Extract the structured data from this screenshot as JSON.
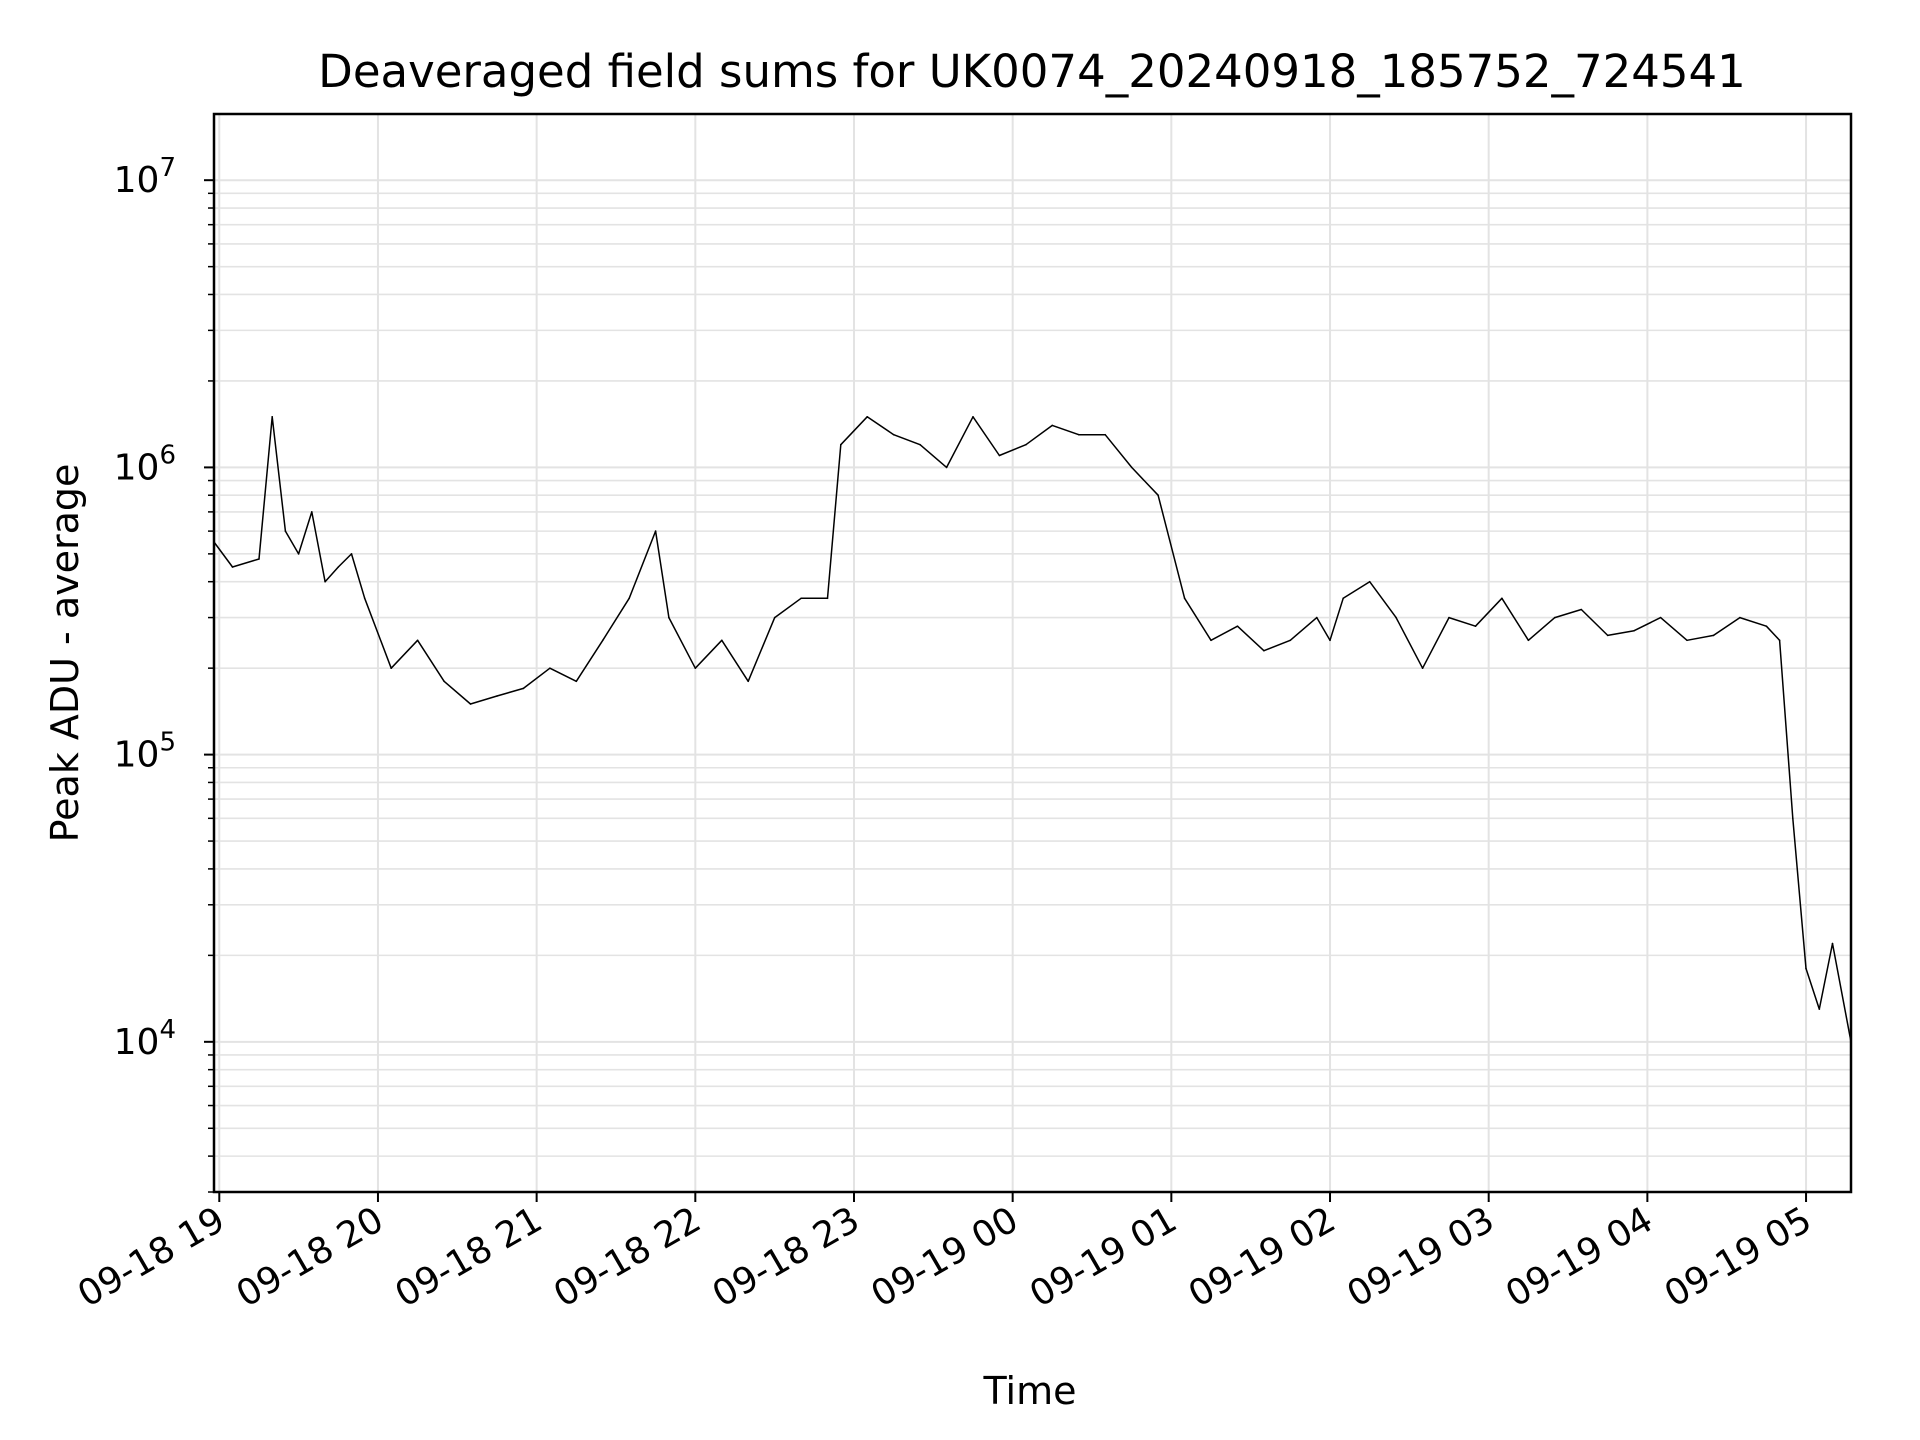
{
  "chart_data": {
    "type": "line",
    "title": "Deaveraged field sums for UK0074_20240918_185752_724541",
    "xlabel": "Time",
    "ylabel": "Peak ADU - average",
    "yscale": "log",
    "grid": true,
    "x_ticks": [
      "09-18 19",
      "09-18 20",
      "09-18 21",
      "09-18 22",
      "09-18 23",
      "09-19 00",
      "09-19 01",
      "09-19 02",
      "09-19 03",
      "09-19 04",
      "09-19 05"
    ],
    "y_ticks": [
      {
        "base": "10",
        "exp": "4"
      },
      {
        "base": "10",
        "exp": "5"
      },
      {
        "base": "10",
        "exp": "6"
      },
      {
        "base": "10",
        "exp": "7"
      }
    ],
    "xlim": [
      "2024-09-18 18:58",
      "2024-09-19 05:17"
    ],
    "ylim": [
      3000,
      17000000
    ],
    "line_color": "#000000",
    "grid_color": "#e3e3e3",
    "series": [
      {
        "name": "",
        "x": [
          "2024-09-18 18:58",
          "2024-09-18 19:05",
          "2024-09-18 19:15",
          "2024-09-18 19:20",
          "2024-09-18 19:25",
          "2024-09-18 19:30",
          "2024-09-18 19:35",
          "2024-09-18 19:40",
          "2024-09-18 19:45",
          "2024-09-18 19:50",
          "2024-09-18 19:55",
          "2024-09-18 20:05",
          "2024-09-18 20:15",
          "2024-09-18 20:25",
          "2024-09-18 20:35",
          "2024-09-18 20:45",
          "2024-09-18 20:55",
          "2024-09-18 21:05",
          "2024-09-18 21:15",
          "2024-09-18 21:25",
          "2024-09-18 21:35",
          "2024-09-18 21:45",
          "2024-09-18 21:50",
          "2024-09-18 22:00",
          "2024-09-18 22:10",
          "2024-09-18 22:20",
          "2024-09-18 22:30",
          "2024-09-18 22:40",
          "2024-09-18 22:50",
          "2024-09-18 22:55",
          "2024-09-18 23:05",
          "2024-09-18 23:15",
          "2024-09-18 23:25",
          "2024-09-18 23:35",
          "2024-09-18 23:45",
          "2024-09-18 23:55",
          "2024-09-19 00:05",
          "2024-09-19 00:15",
          "2024-09-19 00:25",
          "2024-09-19 00:35",
          "2024-09-19 00:45",
          "2024-09-19 00:55",
          "2024-09-19 01:05",
          "2024-09-19 01:15",
          "2024-09-19 01:25",
          "2024-09-19 01:35",
          "2024-09-19 01:45",
          "2024-09-19 01:55",
          "2024-09-19 02:00",
          "2024-09-19 02:05",
          "2024-09-19 02:15",
          "2024-09-19 02:25",
          "2024-09-19 02:35",
          "2024-09-19 02:45",
          "2024-09-19 02:55",
          "2024-09-19 03:05",
          "2024-09-19 03:15",
          "2024-09-19 03:25",
          "2024-09-19 03:35",
          "2024-09-19 03:45",
          "2024-09-19 03:55",
          "2024-09-19 04:05",
          "2024-09-19 04:15",
          "2024-09-19 04:25",
          "2024-09-19 04:35",
          "2024-09-19 04:45",
          "2024-09-19 04:50",
          "2024-09-19 04:55",
          "2024-09-19 05:00",
          "2024-09-19 05:05",
          "2024-09-19 05:10",
          "2024-09-19 05:17"
        ],
        "y": [
          550000,
          450000,
          480000,
          1500000,
          600000,
          500000,
          700000,
          400000,
          450000,
          500000,
          350000,
          200000,
          250000,
          180000,
          150000,
          160000,
          170000,
          200000,
          180000,
          250000,
          350000,
          600000,
          300000,
          200000,
          250000,
          180000,
          300000,
          350000,
          350000,
          1200000,
          1500000,
          1300000,
          1200000,
          1000000,
          1500000,
          1100000,
          1200000,
          1400000,
          1300000,
          1300000,
          1000000,
          800000,
          350000,
          250000,
          280000,
          230000,
          250000,
          300000,
          250000,
          350000,
          400000,
          300000,
          200000,
          300000,
          280000,
          350000,
          250000,
          300000,
          320000,
          260000,
          270000,
          300000,
          250000,
          260000,
          300000,
          280000,
          250000,
          60000,
          18000,
          13000,
          22000,
          10000
        ]
      }
    ],
    "annotations": []
  }
}
